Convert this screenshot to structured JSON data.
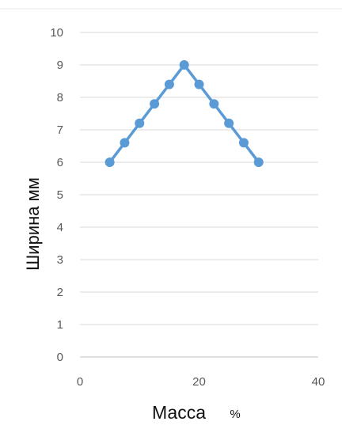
{
  "chart_data": {
    "type": "line",
    "xlabel_main": "Масса",
    "xlabel_unit": "%",
    "ylabel": "Ширина  мм",
    "xlim": [
      0,
      40
    ],
    "ylim": [
      0,
      10
    ],
    "x_ticks": [
      "0",
      "20",
      "40"
    ],
    "y_ticks": [
      "0",
      "1",
      "2",
      "3",
      "4",
      "5",
      "6",
      "7",
      "8",
      "9",
      "10"
    ],
    "grid": true,
    "series": [
      {
        "x": [
          5,
          7.5,
          10,
          12.5,
          15,
          17.5,
          20,
          22.5,
          25,
          27.5,
          30
        ],
        "y": [
          6,
          6.6,
          7.2,
          7.8,
          8.4,
          9,
          8.4,
          7.8,
          7.2,
          6.6,
          6
        ],
        "color": "#5b9bd5"
      }
    ]
  }
}
